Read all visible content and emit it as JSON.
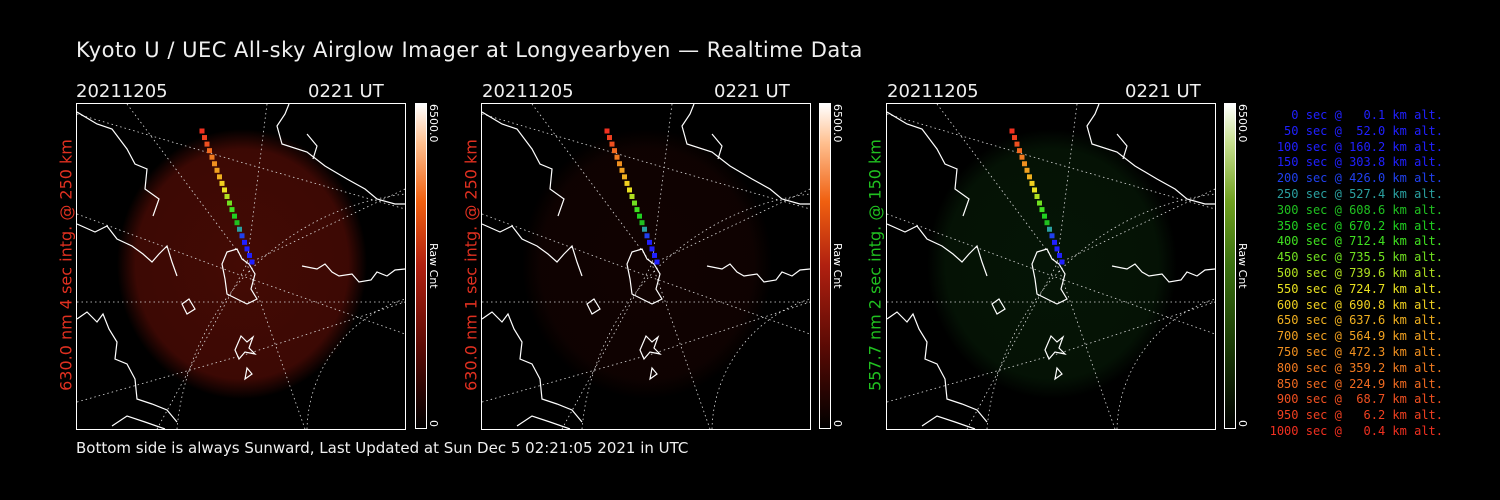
{
  "header": {
    "title": "Kyoto U / UEC All-sky Airglow Imager at Longyearbyen — Realtime Data"
  },
  "footer": {
    "text": "Bottom side is always Sunward, Last Updated at Sun Dec  5 02:21:05 2021 in UTC"
  },
  "colors": {
    "red_channel": "#e03020",
    "green_channel": "#20c020",
    "red_glow": "#7a1208",
    "green_glow": "#0f3a10"
  },
  "panels": [
    {
      "date": "20211205",
      "time": "0221 UT",
      "ylabel": "630.0 nm 4 sec intg. @ 250 km",
      "ylabel_color": "#e03020",
      "cbar_max": "6500.0",
      "cbar_min": "0",
      "cbar_unit": "Raw Cnt",
      "glow_intensity": 0.55,
      "glow_color": "#7a1208"
    },
    {
      "date": "20211205",
      "time": "0221 UT",
      "ylabel": "630.0 nm 1 sec intg. @ 250 km",
      "ylabel_color": "#e03020",
      "cbar_max": "6500.0",
      "cbar_min": "0",
      "cbar_unit": "Raw Cnt",
      "glow_intensity": 0.18,
      "glow_color": "#5a0c06"
    },
    {
      "date": "20211205",
      "time": "0221 UT",
      "ylabel": "557.7 nm 2 sec intg. @ 150 km",
      "ylabel_color": "#20c020",
      "cbar_max": "6500.0",
      "cbar_min": "0",
      "cbar_unit": "Raw Cnt",
      "glow_intensity": 0.35,
      "glow_color": "#0f3a10"
    }
  ],
  "trajectory": [
    {
      "text": "0 sec @   0.1 km alt.",
      "color": "#2020ff"
    },
    {
      "text": "50 sec @  52.0 km alt.",
      "color": "#2020ff"
    },
    {
      "text": "100 sec @ 160.2 km alt.",
      "color": "#2020ff"
    },
    {
      "text": "150 sec @ 303.8 km alt.",
      "color": "#2020ff"
    },
    {
      "text": "200 sec @ 426.0 km alt.",
      "color": "#2040ee"
    },
    {
      "text": "250 sec @ 527.4 km alt.",
      "color": "#2aa0a0"
    },
    {
      "text": "300 sec @ 608.6 km alt.",
      "color": "#20c020"
    },
    {
      "text": "350 sec @ 670.2 km alt.",
      "color": "#20d020"
    },
    {
      "text": "400 sec @ 712.4 km alt.",
      "color": "#40e020"
    },
    {
      "text": "450 sec @ 735.5 km alt.",
      "color": "#70e020"
    },
    {
      "text": "500 sec @ 739.6 km alt.",
      "color": "#b0e020"
    },
    {
      "text": "550 sec @ 724.7 km alt.",
      "color": "#e8e020"
    },
    {
      "text": "600 sec @ 690.8 km alt.",
      "color": "#f0d020"
    },
    {
      "text": "650 sec @ 637.6 km alt.",
      "color": "#f0b020"
    },
    {
      "text": "700 sec @ 564.9 km alt.",
      "color": "#f0a020"
    },
    {
      "text": "750 sec @ 472.3 km alt.",
      "color": "#f09020"
    },
    {
      "text": "800 sec @ 359.2 km alt.",
      "color": "#f07a20"
    },
    {
      "text": "850 sec @ 224.9 km alt.",
      "color": "#f06a20"
    },
    {
      "text": "900 sec @  68.7 km alt.",
      "color": "#f05020"
    },
    {
      "text": "950 sec @   6.2 km alt.",
      "color": "#f04020"
    },
    {
      "text": "1000 sec @   0.4 km alt.",
      "color": "#f03020"
    }
  ]
}
